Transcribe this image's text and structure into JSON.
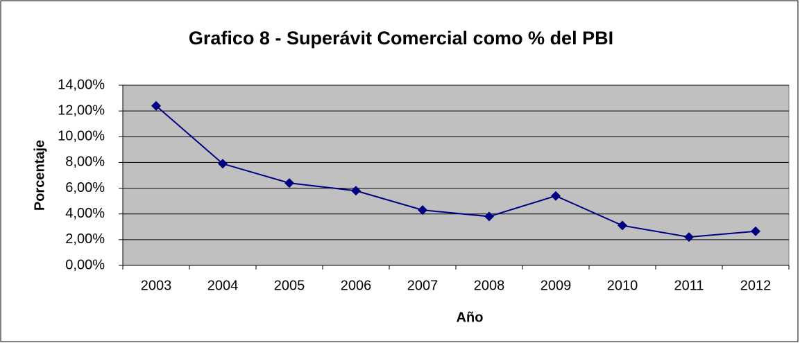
{
  "chart_data": {
    "type": "line",
    "title": "Grafico 8 - Superávit Comercial como % del PBI",
    "x_label": "Año",
    "y_label": "Porcentaje",
    "categories": [
      "2003",
      "2004",
      "2005",
      "2006",
      "2007",
      "2008",
      "2009",
      "2010",
      "2011",
      "2012"
    ],
    "series": [
      {
        "name": "Superávit Comercial",
        "color": "#000080",
        "values": [
          12.4,
          7.9,
          6.4,
          5.8,
          4.3,
          3.8,
          5.4,
          3.1,
          2.2,
          2.65
        ]
      }
    ],
    "ylim": [
      0,
      14
    ],
    "yticks": [
      {
        "value": 0,
        "label": "0,00%"
      },
      {
        "value": 2,
        "label": "2,00%"
      },
      {
        "value": 4,
        "label": "4,00%"
      },
      {
        "value": 6,
        "label": "6,00%"
      },
      {
        "value": 8,
        "label": "8,00%"
      },
      {
        "value": 10,
        "label": "10,00%"
      },
      {
        "value": 12,
        "label": "12,00%"
      },
      {
        "value": 14,
        "label": "14,00%"
      }
    ],
    "grid": true
  }
}
